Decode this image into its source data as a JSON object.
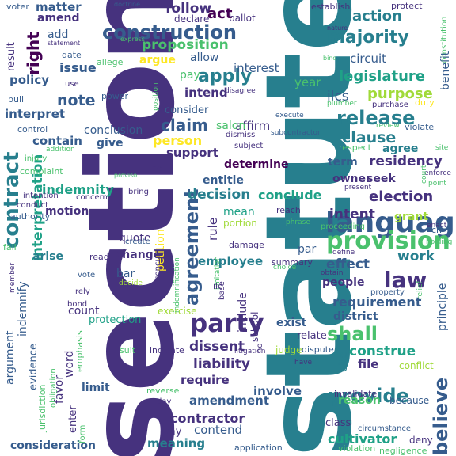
{
  "palette": {
    "background": "#ffffff",
    "colors": [
      "#440154",
      "#46327e",
      "#365c8d",
      "#277f8e",
      "#1fa187",
      "#4ac16d",
      "#a0da39",
      "#fde725"
    ]
  },
  "words": [
    {
      "text": "section",
      "color": "#46327e"
    },
    {
      "text": "statute",
      "color": "#277f8e"
    },
    {
      "text": "language",
      "color": "#365c8d"
    },
    {
      "text": "provision",
      "color": "#4ac16d"
    },
    {
      "text": "party",
      "color": "#46327e"
    },
    {
      "text": "agreement",
      "color": "#365c8d"
    },
    {
      "text": "contract",
      "color": "#277f8e"
    },
    {
      "text": "construction",
      "color": "#365c8d"
    },
    {
      "text": "majority",
      "color": "#277f8e"
    },
    {
      "text": "release",
      "color": "#277f8e"
    },
    {
      "text": "law",
      "color": "#46327e"
    },
    {
      "text": "provide",
      "color": "#277f8e"
    },
    {
      "text": "legislature",
      "color": "#1fa187"
    },
    {
      "text": "apply",
      "color": "#277f8e"
    },
    {
      "text": "claim",
      "color": "#365c8d"
    },
    {
      "text": "note",
      "color": "#365c8d"
    },
    {
      "text": "shall",
      "color": "#4ac16d"
    },
    {
      "text": "right",
      "color": "#440154"
    },
    {
      "text": "believe",
      "color": "#365c8d"
    },
    {
      "text": "interpretation",
      "color": "#1fa187"
    },
    {
      "text": "election",
      "color": "#46327e"
    },
    {
      "text": "clause",
      "color": "#277f8e"
    },
    {
      "text": "purpose",
      "color": "#a0da39"
    },
    {
      "text": "action",
      "color": "#277f8e"
    },
    {
      "text": "residency",
      "color": "#46327e"
    },
    {
      "text": "proposition",
      "color": "#4ac16d"
    },
    {
      "text": "issue",
      "color": "#365c8d"
    },
    {
      "text": "intent",
      "color": "#46327e"
    },
    {
      "text": "person",
      "color": "#fde725"
    },
    {
      "text": "conclude",
      "color": "#1fa187"
    },
    {
      "text": "decision",
      "color": "#277f8e"
    },
    {
      "text": "work",
      "color": "#277f8e"
    },
    {
      "text": "effect",
      "color": "#365c8d"
    },
    {
      "text": "construe",
      "color": "#1fa187"
    },
    {
      "text": "liability",
      "color": "#46327e"
    },
    {
      "text": "dissent",
      "color": "#46327e"
    },
    {
      "text": "indemnity",
      "color": "#1fa187"
    },
    {
      "text": "requirement",
      "color": "#365c8d"
    },
    {
      "text": "contractor",
      "color": "#46327e"
    },
    {
      "text": "cultivator",
      "color": "#1fa187"
    },
    {
      "text": "consideration",
      "color": "#365c8d"
    },
    {
      "text": "meaning",
      "color": "#277f8e"
    },
    {
      "text": "amendment",
      "color": "#365c8d"
    },
    {
      "text": "employee",
      "color": "#277f8e"
    },
    {
      "text": "require",
      "color": "#46327e"
    },
    {
      "text": "determine",
      "color": "#440154"
    },
    {
      "text": "support",
      "color": "#46327e"
    },
    {
      "text": "follow",
      "color": "#46327e"
    },
    {
      "text": "act",
      "color": "#440154"
    },
    {
      "text": "matter",
      "color": "#365c8d"
    },
    {
      "text": "amend",
      "color": "#46327e"
    },
    {
      "text": "interpret",
      "color": "#365c8d"
    },
    {
      "text": "policy",
      "color": "#365c8d"
    },
    {
      "text": "contain",
      "color": "#365c8d"
    },
    {
      "text": "motion",
      "color": "#46327e"
    },
    {
      "text": "arise",
      "color": "#277f8e"
    },
    {
      "text": "change",
      "color": "#46327e"
    },
    {
      "text": "limit",
      "color": "#365c8d"
    },
    {
      "text": "involve",
      "color": "#365c8d"
    },
    {
      "text": "file",
      "color": "#46327e"
    },
    {
      "text": "reason",
      "color": "#4ac16d"
    },
    {
      "text": "people",
      "color": "#46327e"
    },
    {
      "text": "district",
      "color": "#365c8d"
    },
    {
      "text": "exist",
      "color": "#365c8d"
    },
    {
      "text": "grant",
      "color": "#a0da39"
    },
    {
      "text": "owner",
      "color": "#46327e"
    },
    {
      "text": "seek",
      "color": "#46327e"
    },
    {
      "text": "agree",
      "color": "#277f8e"
    },
    {
      "text": "term",
      "color": "#365c8d"
    },
    {
      "text": "entitle",
      "color": "#365c8d"
    },
    {
      "text": "intend",
      "color": "#46327e"
    },
    {
      "text": "consider",
      "color": "#365c8d"
    },
    {
      "text": "give",
      "color": "#365c8d"
    },
    {
      "text": "conclusion",
      "color": "#365c8d"
    },
    {
      "text": "argue",
      "color": "#fde725"
    },
    {
      "text": "allow",
      "color": "#365c8d"
    },
    {
      "text": "add",
      "color": "#365c8d"
    },
    {
      "text": "pay",
      "color": "#4ac16d"
    },
    {
      "text": "interest",
      "color": "#365c8d"
    },
    {
      "text": "year",
      "color": "#4ac16d"
    },
    {
      "text": "circuit",
      "color": "#365c8d"
    },
    {
      "text": "ilcs",
      "color": "#365c8d"
    },
    {
      "text": "affirm",
      "color": "#46327e"
    },
    {
      "text": "salon",
      "color": "#4ac16d"
    },
    {
      "text": "benefit",
      "color": "#365c8d"
    },
    {
      "text": "principle",
      "color": "#365c8d"
    },
    {
      "text": "cite",
      "color": "#277f8e"
    },
    {
      "text": "include",
      "color": "#46327e"
    },
    {
      "text": "rule",
      "color": "#46327e"
    },
    {
      "text": "petition",
      "color": "#fde725"
    },
    {
      "text": "mean",
      "color": "#1fa187"
    },
    {
      "text": "portion",
      "color": "#a0da39"
    },
    {
      "text": "quote",
      "color": "#46327e"
    },
    {
      "text": "count",
      "color": "#46327e"
    },
    {
      "text": "bar",
      "color": "#365c8d"
    },
    {
      "text": "contend",
      "color": "#365c8d"
    },
    {
      "text": "argument",
      "color": "#365c8d"
    },
    {
      "text": "indemnify",
      "color": "#365c8d"
    },
    {
      "text": "evidence",
      "color": "#365c8d"
    },
    {
      "text": "word",
      "color": "#46327e"
    },
    {
      "text": "favor",
      "color": "#46327e"
    },
    {
      "text": "enter",
      "color": "#46327e"
    },
    {
      "text": "result",
      "color": "#46327e"
    },
    {
      "text": "par",
      "color": "#365c8d"
    },
    {
      "text": "conflict",
      "color": "#a0da39"
    },
    {
      "text": "relate",
      "color": "#46327e"
    },
    {
      "text": "school",
      "color": "#46327e"
    },
    {
      "text": "protection",
      "color": "#1fa187"
    },
    {
      "text": "exercise",
      "color": "#a0da39"
    },
    {
      "text": "emphasis",
      "color": "#4ac16d"
    },
    {
      "text": "judge",
      "color": "#a0da39"
    },
    {
      "text": "invalidate",
      "color": "#46327e"
    },
    {
      "text": "class",
      "color": "#46327e"
    },
    {
      "text": "because",
      "color": "#365c8d"
    },
    {
      "text": "say",
      "color": "#46327e"
    },
    {
      "text": "application",
      "color": "#365c8d"
    },
    {
      "text": "violation",
      "color": "#4ac16d"
    },
    {
      "text": "negligence",
      "color": "#4ac16d"
    },
    {
      "text": "deny",
      "color": "#46327e"
    },
    {
      "text": "jurisdiction",
      "color": "#4ac16d"
    },
    {
      "text": "obligation",
      "color": "#4ac16d"
    },
    {
      "text": "writ",
      "color": "#fde725"
    },
    {
      "text": "form",
      "color": "#4ac16d"
    },
    {
      "text": "execute",
      "color": "#365c8d"
    },
    {
      "text": "reverse",
      "color": "#4ac16d"
    },
    {
      "text": "day",
      "color": "#46327e"
    },
    {
      "text": "circumstance",
      "color": "#365c8d"
    },
    {
      "text": "voter",
      "color": "#365c8d"
    },
    {
      "text": "declare",
      "color": "#46327e"
    },
    {
      "text": "ballot",
      "color": "#46327e"
    },
    {
      "text": "establish",
      "color": "#46327e"
    },
    {
      "text": "protect",
      "color": "#46327e"
    },
    {
      "text": "doctrine",
      "color": "#365c8d"
    },
    {
      "text": "statement",
      "color": "#46327e"
    },
    {
      "text": "express",
      "color": "#4ac16d"
    },
    {
      "text": "date",
      "color": "#365c8d"
    },
    {
      "text": "allege",
      "color": "#4ac16d"
    },
    {
      "text": "bull",
      "color": "#365c8d"
    },
    {
      "text": "use",
      "color": "#46327e"
    },
    {
      "text": "power",
      "color": "#365c8d"
    },
    {
      "text": "disagree",
      "color": "#46327e"
    },
    {
      "text": "control",
      "color": "#365c8d"
    },
    {
      "text": "addition",
      "color": "#4ac16d"
    },
    {
      "text": "injury",
      "color": "#4ac16d"
    },
    {
      "text": "complaint",
      "color": "#4ac16d"
    },
    {
      "text": "intention",
      "color": "#46327e"
    },
    {
      "text": "conduct",
      "color": "#46327e"
    },
    {
      "text": "authority",
      "color": "#365c8d"
    },
    {
      "text": "fail",
      "color": "#4ac16d"
    },
    {
      "text": "vote",
      "color": "#365c8d"
    },
    {
      "text": "rely",
      "color": "#46327e"
    },
    {
      "text": "bond",
      "color": "#46327e"
    },
    {
      "text": "suit",
      "color": "#4ac16d"
    },
    {
      "text": "proviso",
      "color": "#4ac16d"
    },
    {
      "text": "set",
      "color": "#46327e"
    },
    {
      "text": "bring",
      "color": "#46327e"
    },
    {
      "text": "concern",
      "color": "#46327e"
    },
    {
      "text": "create",
      "color": "#365c8d"
    },
    {
      "text": "read",
      "color": "#46327e"
    },
    {
      "text": "decide",
      "color": "#a0da39"
    },
    {
      "text": "indicate",
      "color": "#46327e"
    },
    {
      "text": "concur",
      "color": "#46327e"
    },
    {
      "text": "base",
      "color": "#46327e"
    },
    {
      "text": "damage",
      "color": "#46327e"
    },
    {
      "text": "reach",
      "color": "#46327e"
    },
    {
      "text": "phrase",
      "color": "#4ac16d"
    },
    {
      "text": "proceeding",
      "color": "#4ac16d"
    },
    {
      "text": "define",
      "color": "#46327e"
    },
    {
      "text": "summary",
      "color": "#46327e"
    },
    {
      "text": "choice",
      "color": "#4ac16d"
    },
    {
      "text": "obtain",
      "color": "#46327e"
    },
    {
      "text": "property",
      "color": "#365c8d"
    },
    {
      "text": "dispute",
      "color": "#365c8d"
    },
    {
      "text": "have",
      "color": "#46327e"
    },
    {
      "text": "litigation",
      "color": "#46327e"
    },
    {
      "text": "dismiss",
      "color": "#46327e"
    },
    {
      "text": "subject",
      "color": "#46327e"
    },
    {
      "text": "subcontractor",
      "color": "#365c8d"
    },
    {
      "text": "respect",
      "color": "#4ac16d"
    },
    {
      "text": "review",
      "color": "#4ac16d"
    },
    {
      "text": "violate",
      "color": "#365c8d"
    },
    {
      "text": "plumber",
      "color": "#4ac16d"
    },
    {
      "text": "purchase",
      "color": "#46327e"
    },
    {
      "text": "duty",
      "color": "#fde725"
    },
    {
      "text": "position",
      "color": "#4ac16d"
    },
    {
      "text": "site",
      "color": "#4ac16d"
    },
    {
      "text": "enforce",
      "color": "#46327e"
    },
    {
      "text": "point",
      "color": "#4ac16d"
    },
    {
      "text": "enact",
      "color": "#46327e"
    },
    {
      "text": "present",
      "color": "#46327e"
    },
    {
      "text": "holding",
      "color": "#4ac16d"
    },
    {
      "text": "ch",
      "color": "#365c8d"
    },
    {
      "text": "nature",
      "color": "#46327e"
    },
    {
      "text": "bind",
      "color": "#4ac16d"
    },
    {
      "text": "constitution",
      "color": "#4ac16d"
    },
    {
      "text": "member",
      "color": "#46327e"
    },
    {
      "text": "indemnification",
      "color": "#4ac16d"
    },
    {
      "text": "limitation",
      "color": "#4ac16d"
    },
    {
      "text": "relief",
      "color": "#4ac16d"
    },
    {
      "text": "court",
      "color": "#4ac16d"
    },
    {
      "text": "ilc",
      "color": "#46327e"
    },
    {
      "text": "no",
      "color": "#46327e"
    }
  ]
}
